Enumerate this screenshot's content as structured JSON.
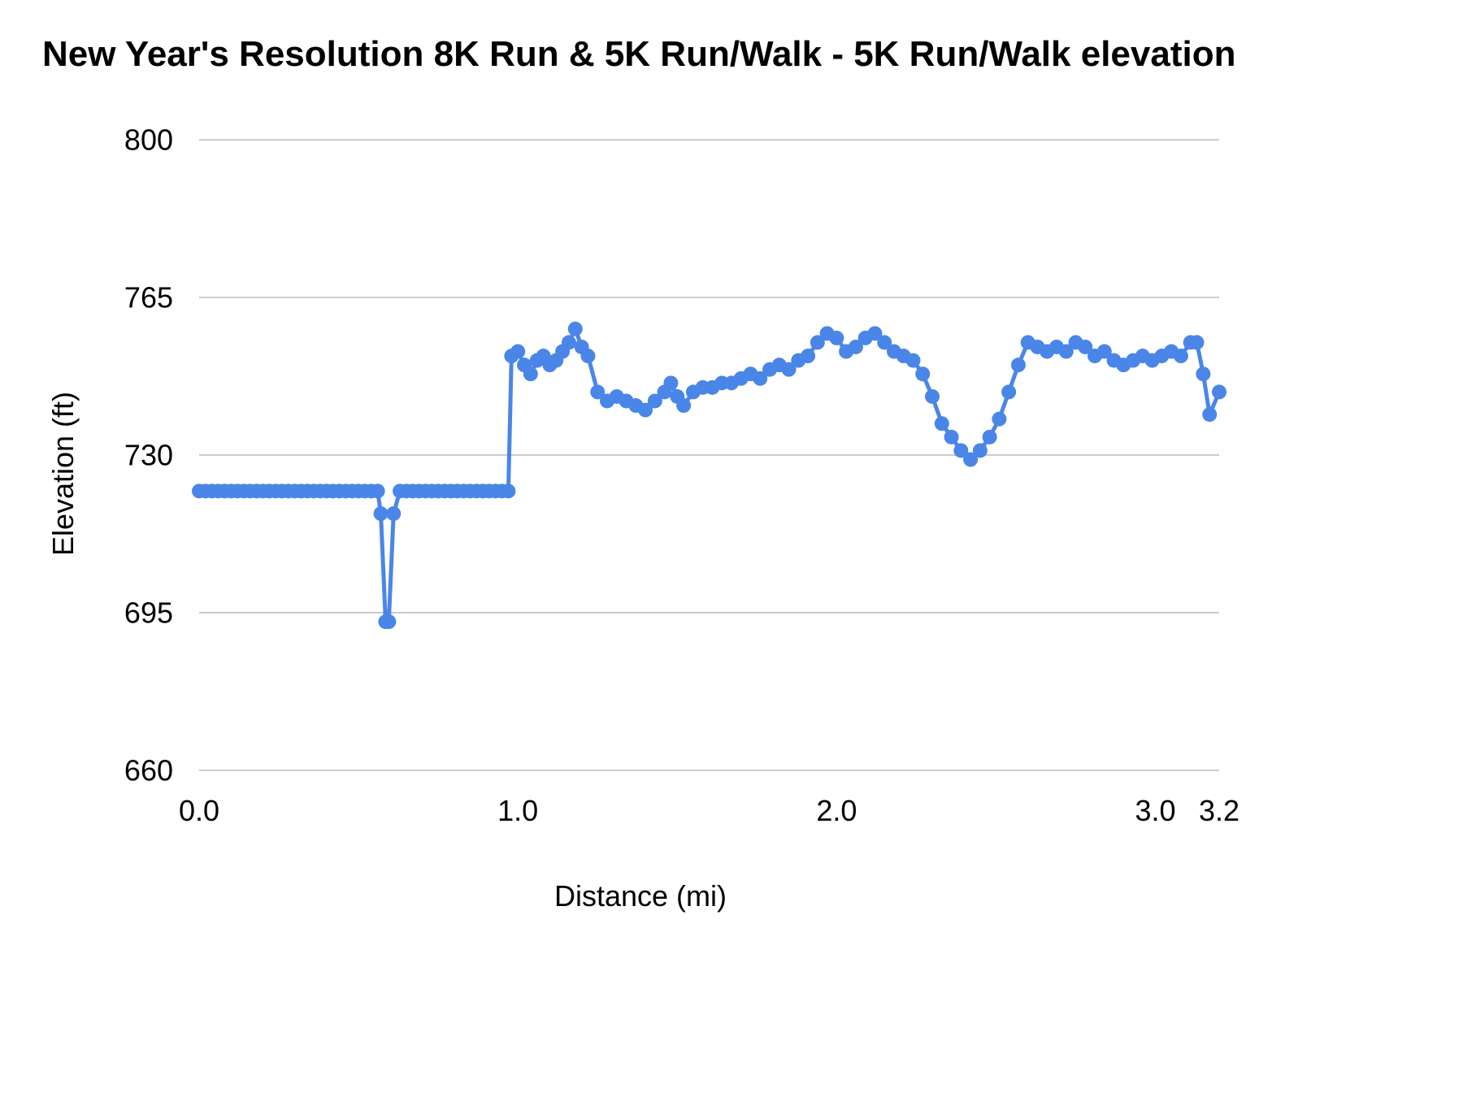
{
  "page": {
    "background_color": "#ffffff"
  },
  "chart_data": {
    "type": "line",
    "title": "New Year's Resolution 8K Run & 5K Run/Walk - 5K Run/Walk elevation",
    "xlabel": "Distance (mi)",
    "ylabel": "Elevation (ft)",
    "xlim": [
      0,
      3.2
    ],
    "ylim": [
      660,
      800
    ],
    "yticks": [
      660,
      695,
      730,
      765,
      800
    ],
    "xticks": [
      {
        "value": 0.0,
        "label": "0.0"
      },
      {
        "value": 1.0,
        "label": "1.0"
      },
      {
        "value": 2.0,
        "label": "2.0"
      },
      {
        "value": 3.0,
        "label": "3.0"
      },
      {
        "value": 3.2,
        "label": "3.2"
      }
    ],
    "grid": "horizontal",
    "gridline_color": "#cccccc",
    "legend_position": "none",
    "series": [
      {
        "name": "5K Run/Walk elevation",
        "color": "#4a86e8",
        "marker": "circle",
        "marker_radius": 9,
        "line_width": 5,
        "points": [
          [
            0.0,
            722
          ],
          [
            0.02,
            722
          ],
          [
            0.04,
            722
          ],
          [
            0.06,
            722
          ],
          [
            0.08,
            722
          ],
          [
            0.1,
            722
          ],
          [
            0.12,
            722
          ],
          [
            0.14,
            722
          ],
          [
            0.16,
            722
          ],
          [
            0.18,
            722
          ],
          [
            0.2,
            722
          ],
          [
            0.22,
            722
          ],
          [
            0.24,
            722
          ],
          [
            0.26,
            722
          ],
          [
            0.28,
            722
          ],
          [
            0.3,
            722
          ],
          [
            0.32,
            722
          ],
          [
            0.34,
            722
          ],
          [
            0.36,
            722
          ],
          [
            0.38,
            722
          ],
          [
            0.4,
            722
          ],
          [
            0.42,
            722
          ],
          [
            0.44,
            722
          ],
          [
            0.46,
            722
          ],
          [
            0.48,
            722
          ],
          [
            0.5,
            722
          ],
          [
            0.52,
            722
          ],
          [
            0.54,
            722
          ],
          [
            0.56,
            722
          ],
          [
            0.57,
            717
          ],
          [
            0.585,
            693
          ],
          [
            0.595,
            693
          ],
          [
            0.61,
            717
          ],
          [
            0.63,
            722
          ],
          [
            0.65,
            722
          ],
          [
            0.67,
            722
          ],
          [
            0.69,
            722
          ],
          [
            0.71,
            722
          ],
          [
            0.73,
            722
          ],
          [
            0.75,
            722
          ],
          [
            0.77,
            722
          ],
          [
            0.79,
            722
          ],
          [
            0.81,
            722
          ],
          [
            0.83,
            722
          ],
          [
            0.85,
            722
          ],
          [
            0.87,
            722
          ],
          [
            0.89,
            722
          ],
          [
            0.91,
            722
          ],
          [
            0.93,
            722
          ],
          [
            0.95,
            722
          ],
          [
            0.97,
            722
          ],
          [
            0.98,
            752
          ],
          [
            1.0,
            753
          ],
          [
            1.02,
            750
          ],
          [
            1.04,
            748
          ],
          [
            1.06,
            751
          ],
          [
            1.08,
            752
          ],
          [
            1.1,
            750
          ],
          [
            1.12,
            751
          ],
          [
            1.14,
            753
          ],
          [
            1.16,
            755
          ],
          [
            1.18,
            758
          ],
          [
            1.2,
            754
          ],
          [
            1.22,
            752
          ],
          [
            1.25,
            744
          ],
          [
            1.28,
            742
          ],
          [
            1.31,
            743
          ],
          [
            1.34,
            742
          ],
          [
            1.37,
            741
          ],
          [
            1.4,
            740
          ],
          [
            1.43,
            742
          ],
          [
            1.46,
            744
          ],
          [
            1.48,
            746
          ],
          [
            1.5,
            743
          ],
          [
            1.52,
            741
          ],
          [
            1.55,
            744
          ],
          [
            1.58,
            745
          ],
          [
            1.61,
            745
          ],
          [
            1.64,
            746
          ],
          [
            1.67,
            746
          ],
          [
            1.7,
            747
          ],
          [
            1.73,
            748
          ],
          [
            1.76,
            747
          ],
          [
            1.79,
            749
          ],
          [
            1.82,
            750
          ],
          [
            1.85,
            749
          ],
          [
            1.88,
            751
          ],
          [
            1.91,
            752
          ],
          [
            1.94,
            755
          ],
          [
            1.97,
            757
          ],
          [
            2.0,
            756
          ],
          [
            2.03,
            753
          ],
          [
            2.06,
            754
          ],
          [
            2.09,
            756
          ],
          [
            2.12,
            757
          ],
          [
            2.15,
            755
          ],
          [
            2.18,
            753
          ],
          [
            2.21,
            752
          ],
          [
            2.24,
            751
          ],
          [
            2.27,
            748
          ],
          [
            2.3,
            743
          ],
          [
            2.33,
            737
          ],
          [
            2.36,
            734
          ],
          [
            2.39,
            731
          ],
          [
            2.42,
            729
          ],
          [
            2.45,
            731
          ],
          [
            2.48,
            734
          ],
          [
            2.51,
            738
          ],
          [
            2.54,
            744
          ],
          [
            2.57,
            750
          ],
          [
            2.6,
            755
          ],
          [
            2.63,
            754
          ],
          [
            2.66,
            753
          ],
          [
            2.69,
            754
          ],
          [
            2.72,
            753
          ],
          [
            2.75,
            755
          ],
          [
            2.78,
            754
          ],
          [
            2.81,
            752
          ],
          [
            2.84,
            753
          ],
          [
            2.87,
            751
          ],
          [
            2.9,
            750
          ],
          [
            2.93,
            751
          ],
          [
            2.96,
            752
          ],
          [
            2.99,
            751
          ],
          [
            3.02,
            752
          ],
          [
            3.05,
            753
          ],
          [
            3.08,
            752
          ],
          [
            3.11,
            755
          ],
          [
            3.13,
            755
          ],
          [
            3.15,
            748
          ],
          [
            3.17,
            739
          ],
          [
            3.2,
            744
          ]
        ]
      }
    ]
  }
}
